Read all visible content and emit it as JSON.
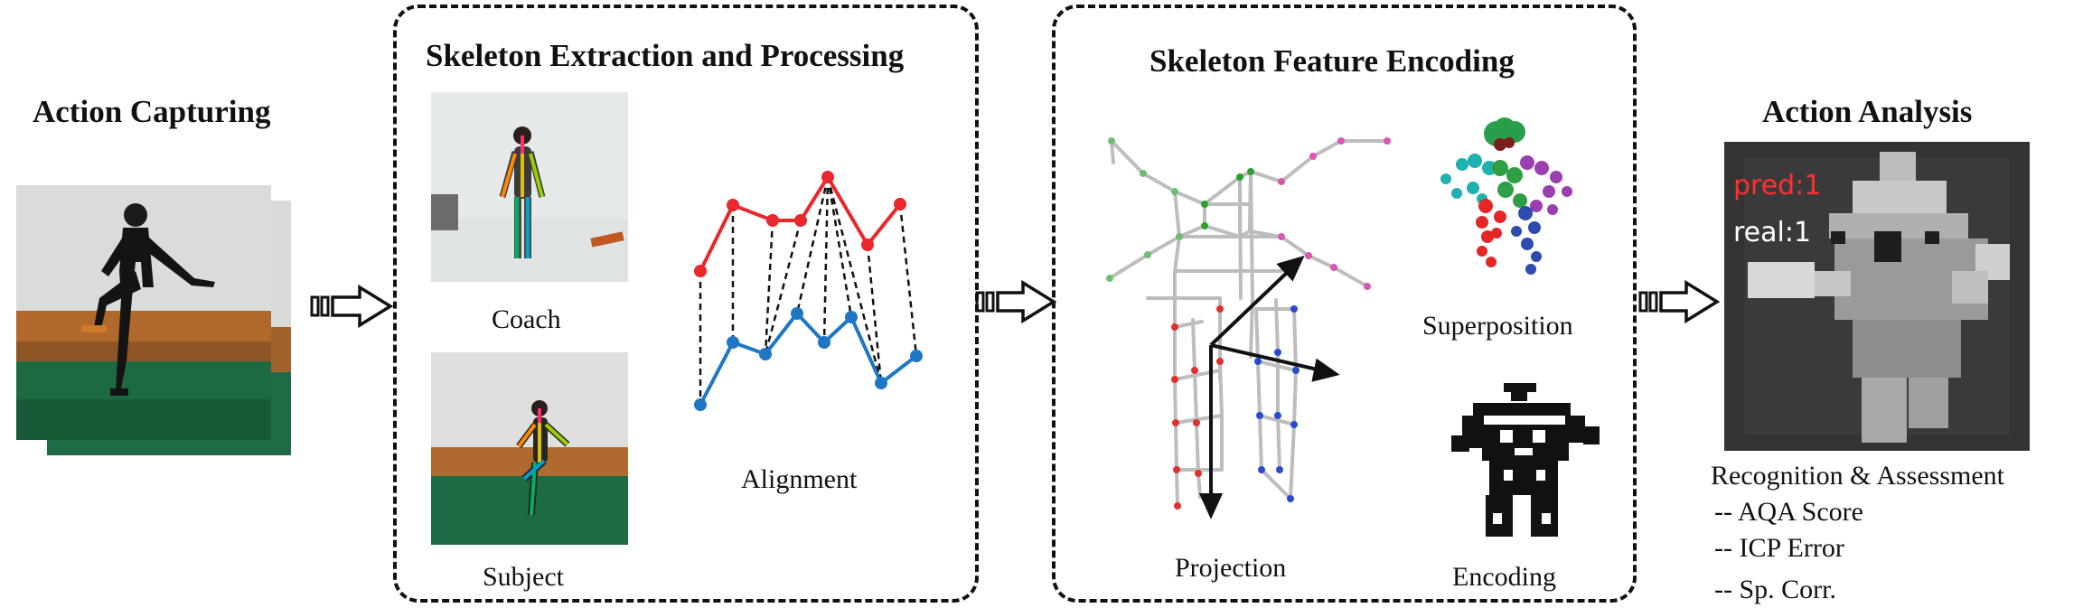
{
  "stages": {
    "capture": {
      "title": "Action Capturing"
    },
    "extraction": {
      "title": "Skeleton Extraction and Processing",
      "coach_label": "Coach",
      "subject_label": "Subject",
      "alignment_label": "Alignment"
    },
    "encoding": {
      "title": "Skeleton Feature Encoding",
      "superposition_label": "Superposition",
      "projection_label": "Projection",
      "encoding_label": "Encoding"
    },
    "analysis": {
      "title": "Action Analysis",
      "pred_text": "pred:1",
      "real_text": "real:1",
      "result_title": "Recognition & Assessment",
      "metrics": [
        "-- AQA Score",
        "-- ICP Error",
        "-- Sp. Corr."
      ]
    }
  },
  "colors": {
    "pred": "#ff3030",
    "real": "#ffffff",
    "red_series": "#e8282a",
    "blue_series": "#1f77c4",
    "skeleton": "#b9b9b9"
  }
}
